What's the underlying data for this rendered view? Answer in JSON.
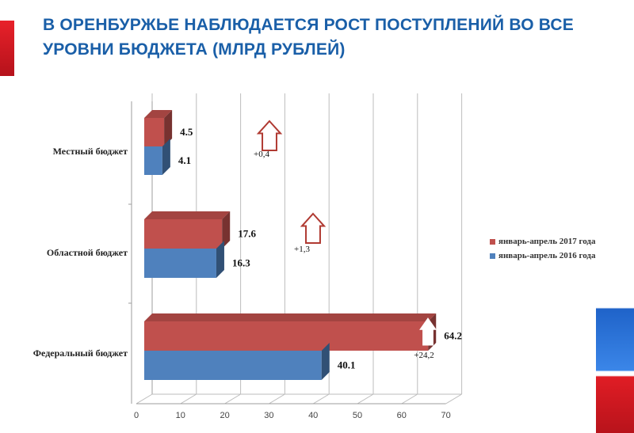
{
  "title": "В ОРЕНБУРЖЬЕ НАБЛЮДАЕТСЯ РОСТ ПОСТУПЛЕНИЙ  ВО ВСЕ УРОВНИ БЮДЖЕТА (МЛРД РУБЛЕЙ)",
  "colors": {
    "series_2017": "#c0504d",
    "series_2016": "#4f81bd",
    "title": "#1a5fa8",
    "arrow_outline": "#b03a32"
  },
  "chart_data": {
    "type": "bar",
    "orientation": "horizontal",
    "style": "3d",
    "title": "В ОРЕНБУРЖЬЕ НАБЛЮДАЕТСЯ РОСТ ПОСТУПЛЕНИЙ  ВО ВСЕ УРОВНИ БЮДЖЕТА (МЛРД РУБЛЕЙ)",
    "categories": [
      "Местный бюджет",
      "Областной бюджет",
      "Федеральный бюджет"
    ],
    "series": [
      {
        "name": "январь-апрель  2017 года",
        "values": [
          4.5,
          17.6,
          64.2
        ]
      },
      {
        "name": "январь-апрель  2016 года",
        "values": [
          4.1,
          16.3,
          40.1
        ]
      }
    ],
    "value_labels": [
      [
        "4.5",
        "17.6",
        "64.2"
      ],
      [
        "4.1",
        "16.3",
        "40.1"
      ]
    ],
    "annotations": [
      "+0,4",
      "+1,3",
      "+24,2"
    ],
    "x_ticks": [
      "0",
      "10",
      "20",
      "30",
      "40",
      "50",
      "60",
      "70"
    ],
    "xlim": [
      0,
      70
    ],
    "grid": true,
    "legend_position": "right"
  }
}
